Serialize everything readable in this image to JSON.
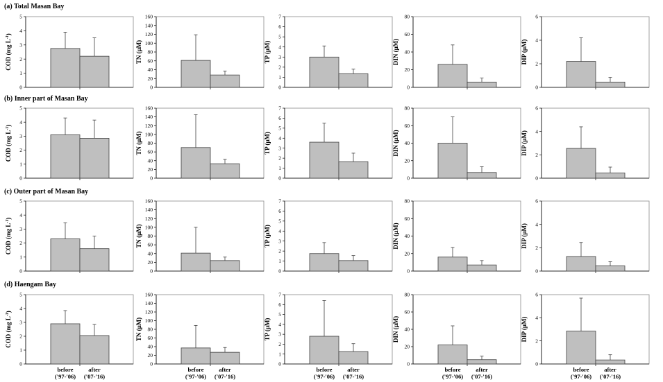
{
  "figure": {
    "categories": [
      "before",
      "after"
    ],
    "category_periods": [
      "('97-'06)",
      "('07-'16)"
    ]
  },
  "chart_data": [
    {
      "type": "bar",
      "panel": "(a) Total Masan Bay",
      "ylabel": "COD (mg L-1)",
      "ylim": [
        0,
        5
      ],
      "yticks": [
        0,
        1,
        2,
        3,
        4,
        5
      ],
      "categories": [
        "before ('97-'06)",
        "after ('07-'16)"
      ],
      "values": [
        2.75,
        2.2
      ],
      "errors": [
        1.15,
        1.3
      ]
    },
    {
      "type": "bar",
      "panel": "(a) Total Masan Bay",
      "ylabel": "TN (μM)",
      "ylim": [
        0,
        160
      ],
      "yticks": [
        0,
        20,
        40,
        60,
        80,
        100,
        120,
        140,
        160
      ],
      "categories": [
        "before ('97-'06)",
        "after ('07-'16)"
      ],
      "values": [
        61,
        28
      ],
      "errors": [
        58,
        9
      ]
    },
    {
      "type": "bar",
      "panel": "(a) Total Masan Bay",
      "ylabel": "TP (μM)",
      "ylim": [
        0,
        7
      ],
      "yticks": [
        0,
        1,
        2,
        3,
        4,
        5,
        6,
        7
      ],
      "categories": [
        "before ('97-'06)",
        "after ('07-'16)"
      ],
      "values": [
        3.0,
        1.35
      ],
      "errors": [
        1.1,
        0.45
      ]
    },
    {
      "type": "bar",
      "panel": "(a) Total Masan Bay",
      "ylabel": "DIN (μM)",
      "ylim": [
        0,
        80
      ],
      "yticks": [
        0,
        20,
        40,
        60,
        80
      ],
      "categories": [
        "before ('97-'06)",
        "after ('07-'16)"
      ],
      "values": [
        26,
        6
      ],
      "errors": [
        22,
        4.5
      ]
    },
    {
      "type": "bar",
      "panel": "(a) Total Masan Bay",
      "ylabel": "DIP (μM)",
      "ylim": [
        0,
        6
      ],
      "yticks": [
        0,
        2,
        4,
        6
      ],
      "categories": [
        "before ('97-'06)",
        "after ('07-'16)"
      ],
      "values": [
        2.2,
        0.45
      ],
      "errors": [
        2.0,
        0.4
      ]
    },
    {
      "type": "bar",
      "panel": "(b) Inner part of Masan Bay",
      "ylabel": "COD (mg L-1)",
      "ylim": [
        0,
        5
      ],
      "yticks": [
        0,
        1,
        2,
        3,
        4,
        5
      ],
      "categories": [
        "before ('97-'06)",
        "after ('07-'16)"
      ],
      "values": [
        3.1,
        2.85
      ],
      "errors": [
        1.2,
        1.3
      ]
    },
    {
      "type": "bar",
      "panel": "(b) Inner part of Masan Bay",
      "ylabel": "TN (μM)",
      "ylim": [
        0,
        160
      ],
      "yticks": [
        0,
        20,
        40,
        60,
        80,
        100,
        120,
        140,
        160
      ],
      "categories": [
        "before ('97-'06)",
        "after ('07-'16)"
      ],
      "values": [
        70,
        33
      ],
      "errors": [
        75,
        10
      ]
    },
    {
      "type": "bar",
      "panel": "(b) Inner part of Masan Bay",
      "ylabel": "TP (μM)",
      "ylim": [
        0,
        7
      ],
      "yticks": [
        0,
        1,
        2,
        3,
        4,
        5,
        6,
        7
      ],
      "categories": [
        "before ('97-'06)",
        "after ('07-'16)"
      ],
      "values": [
        3.6,
        1.65
      ],
      "errors": [
        1.9,
        0.85
      ]
    },
    {
      "type": "bar",
      "panel": "(b) Inner part of Masan Bay",
      "ylabel": "DIN (μM)",
      "ylim": [
        0,
        80
      ],
      "yticks": [
        0,
        20,
        40,
        60,
        80
      ],
      "categories": [
        "before ('97-'06)",
        "after ('07-'16)"
      ],
      "values": [
        40,
        6.5
      ],
      "errors": [
        30,
        6.5
      ]
    },
    {
      "type": "bar",
      "panel": "(b) Inner part of Masan Bay",
      "ylabel": "DIP (μM)",
      "ylim": [
        0,
        6
      ],
      "yticks": [
        0,
        2,
        4,
        6
      ],
      "categories": [
        "before ('97-'06)",
        "after ('07-'16)"
      ],
      "values": [
        2.55,
        0.45
      ],
      "errors": [
        1.85,
        0.5
      ]
    },
    {
      "type": "bar",
      "panel": "(c) Outer part of Masan Bay",
      "ylabel": "COD (mg L-1)",
      "ylim": [
        0,
        5
      ],
      "yticks": [
        0,
        1,
        2,
        3,
        4,
        5
      ],
      "categories": [
        "before ('97-'06)",
        "after ('07-'16)"
      ],
      "values": [
        2.3,
        1.6
      ],
      "errors": [
        1.15,
        0.9
      ]
    },
    {
      "type": "bar",
      "panel": "(c) Outer part of Masan Bay",
      "ylabel": "TN (μM)",
      "ylim": [
        0,
        160
      ],
      "yticks": [
        0,
        20,
        40,
        60,
        80,
        100,
        120,
        140,
        160
      ],
      "categories": [
        "before ('97-'06)",
        "after ('07-'16)"
      ],
      "values": [
        41,
        24
      ],
      "errors": [
        59,
        8
      ]
    },
    {
      "type": "bar",
      "panel": "(c) Outer part of Masan Bay",
      "ylabel": "TP (μM)",
      "ylim": [
        0,
        7
      ],
      "yticks": [
        0,
        1,
        2,
        3,
        4,
        5,
        6,
        7
      ],
      "categories": [
        "before ('97-'06)",
        "after ('07-'16)"
      ],
      "values": [
        1.75,
        1.05
      ],
      "errors": [
        1.1,
        0.5
      ]
    },
    {
      "type": "bar",
      "panel": "(c) Outer part of Masan Bay",
      "ylabel": "DIN (μM)",
      "ylim": [
        0,
        80
      ],
      "yticks": [
        0,
        20,
        40,
        60,
        80
      ],
      "categories": [
        "before ('97-'06)",
        "after ('07-'16)"
      ],
      "values": [
        16,
        7
      ],
      "errors": [
        11,
        5
      ]
    },
    {
      "type": "bar",
      "panel": "(c) Outer part of Masan Bay",
      "ylabel": "DIP (μM)",
      "ylim": [
        0,
        6
      ],
      "yticks": [
        0,
        2,
        4,
        6
      ],
      "categories": [
        "before ('97-'06)",
        "after ('07-'16)"
      ],
      "values": [
        1.25,
        0.45
      ],
      "errors": [
        1.2,
        0.35
      ]
    },
    {
      "type": "bar",
      "panel": "(d) Haengam Bay",
      "ylabel": "COD (mg L-1)",
      "ylim": [
        0,
        5
      ],
      "yticks": [
        0,
        1,
        2,
        3,
        4,
        5
      ],
      "categories": [
        "before ('97-'06)",
        "after ('07-'16)"
      ],
      "values": [
        2.9,
        2.05
      ],
      "errors": [
        0.95,
        0.8
      ]
    },
    {
      "type": "bar",
      "panel": "(d) Haengam Bay",
      "ylabel": "TN (μM)",
      "ylim": [
        0,
        160
      ],
      "yticks": [
        0,
        20,
        40,
        60,
        80,
        100,
        120,
        140,
        160
      ],
      "categories": [
        "before ('97-'06)",
        "after ('07-'16)"
      ],
      "values": [
        37,
        27
      ],
      "errors": [
        52,
        11
      ]
    },
    {
      "type": "bar",
      "panel": "(d) Haengam Bay",
      "ylabel": "TP (μM)",
      "ylim": [
        0,
        7
      ],
      "yticks": [
        0,
        1,
        2,
        3,
        4,
        5,
        6,
        7
      ],
      "categories": [
        "before ('97-'06)",
        "after ('07-'16)"
      ],
      "values": [
        2.8,
        1.25
      ],
      "errors": [
        3.6,
        0.8
      ]
    },
    {
      "type": "bar",
      "panel": "(d) Haengam Bay",
      "ylabel": "DIN (μM)",
      "ylim": [
        0,
        80
      ],
      "yticks": [
        0,
        20,
        40,
        60,
        80
      ],
      "categories": [
        "before ('97-'06)",
        "after ('07-'16)"
      ],
      "values": [
        22,
        5
      ],
      "errors": [
        22,
        4
      ]
    },
    {
      "type": "bar",
      "panel": "(d) Haengam Bay",
      "ylabel": "DIP (μM)",
      "ylim": [
        0,
        6
      ],
      "yticks": [
        0,
        2,
        4,
        6
      ],
      "categories": [
        "before ('97-'06)",
        "after ('07-'16)"
      ],
      "values": [
        2.85,
        0.35
      ],
      "errors": [
        2.85,
        0.45
      ]
    }
  ]
}
